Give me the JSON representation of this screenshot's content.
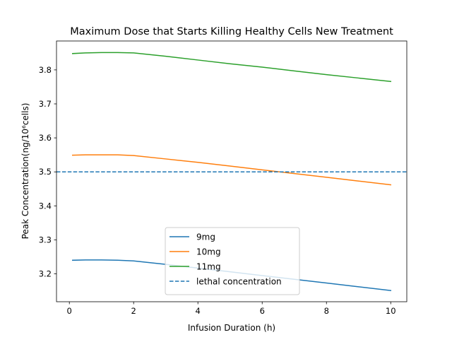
{
  "chart_data": {
    "type": "line",
    "title": "Maximum Dose that Starts Killing Healthy Cells New Treatment",
    "xlabel": "Infusion Duration (h)",
    "ylabel": "Peak Concentration(ng/10⁶cells)",
    "xlim": [
      -0.4,
      10.5
    ],
    "ylim": [
      3.118,
      3.885
    ],
    "xticks": [
      0,
      2,
      4,
      6,
      8,
      10
    ],
    "xtick_labels": [
      "0",
      "2",
      "4",
      "6",
      "8",
      "10"
    ],
    "yticks": [
      3.2,
      3.3,
      3.4,
      3.5,
      3.6,
      3.7,
      3.8
    ],
    "ytick_labels": [
      "3.2",
      "3.3",
      "3.4",
      "3.5",
      "3.6",
      "3.7",
      "3.8"
    ],
    "grid": false,
    "legend_position": "lower center",
    "series": [
      {
        "name": "9mg",
        "color": "#1f77b4",
        "style": "solid",
        "x": [
          0.1,
          0.5,
          1,
          1.5,
          2,
          3,
          4,
          5,
          6,
          7,
          8,
          9,
          10
        ],
        "y": [
          3.24,
          3.241,
          3.241,
          3.24,
          3.238,
          3.228,
          3.217,
          3.206,
          3.195,
          3.184,
          3.173,
          3.162,
          3.151
        ]
      },
      {
        "name": "10mg",
        "color": "#ff7f0e",
        "style": "solid",
        "x": [
          0.1,
          0.5,
          1,
          1.5,
          2,
          3,
          4,
          5,
          6,
          7,
          8,
          9,
          10
        ],
        "y": [
          3.549,
          3.55,
          3.55,
          3.55,
          3.548,
          3.538,
          3.528,
          3.517,
          3.506,
          3.495,
          3.484,
          3.473,
          3.462
        ]
      },
      {
        "name": "11mg",
        "color": "#2ca02c",
        "style": "solid",
        "x": [
          0.1,
          0.5,
          1,
          1.5,
          2,
          3,
          4,
          5,
          6,
          7,
          8,
          9,
          10
        ],
        "y": [
          3.848,
          3.85,
          3.851,
          3.851,
          3.85,
          3.84,
          3.829,
          3.818,
          3.808,
          3.797,
          3.786,
          3.776,
          3.766
        ]
      }
    ],
    "reference_lines": [
      {
        "name": "lethal concentration",
        "orientation": "horizontal",
        "y": 3.5,
        "color": "#1f77b4",
        "style": "dashed"
      }
    ]
  }
}
